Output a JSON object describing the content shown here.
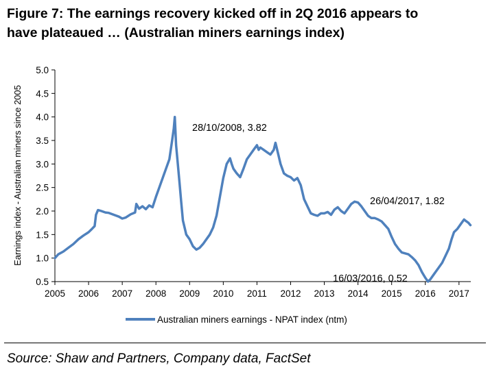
{
  "figure": {
    "title_line1": "Figure   7: The earnings recovery kicked off in 2Q 2016 appears to",
    "title_line2": "have plateaued … (Australian miners earnings index)",
    "source": "Source: Shaw and Partners, Company data, FactSet"
  },
  "chart_data": {
    "type": "line",
    "title": "",
    "xlabel": "",
    "ylabel": "Earnings index - Australian miners since 2005",
    "xlim": [
      2005.0,
      2017.35
    ],
    "ylim": [
      0.5,
      5.0
    ],
    "y_ticks": [
      "0.5",
      "1.0",
      "1.5",
      "2.0",
      "2.5",
      "3.0",
      "3.5",
      "4.0",
      "4.5",
      "5.0"
    ],
    "x_ticks": [
      "2005",
      "2006",
      "2007",
      "2008",
      "2009",
      "2010",
      "2011",
      "2012",
      "2013",
      "2014",
      "2015",
      "2016",
      "2017"
    ],
    "grid": false,
    "legend": "bottom",
    "color": "#4f81bd",
    "series": [
      {
        "name": "Australian miners earnings - NPAT index (ntm)",
        "points": [
          [
            2005.0,
            1.0
          ],
          [
            2005.1,
            1.08
          ],
          [
            2005.25,
            1.14
          ],
          [
            2005.4,
            1.22
          ],
          [
            2005.55,
            1.3
          ],
          [
            2005.7,
            1.4
          ],
          [
            2005.85,
            1.48
          ],
          [
            2006.0,
            1.55
          ],
          [
            2006.1,
            1.62
          ],
          [
            2006.18,
            1.68
          ],
          [
            2006.22,
            1.92
          ],
          [
            2006.28,
            2.02
          ],
          [
            2006.38,
            2.0
          ],
          [
            2006.5,
            1.97
          ],
          [
            2006.6,
            1.96
          ],
          [
            2006.75,
            1.92
          ],
          [
            2006.9,
            1.88
          ],
          [
            2007.0,
            1.84
          ],
          [
            2007.1,
            1.86
          ],
          [
            2007.25,
            1.93
          ],
          [
            2007.38,
            1.97
          ],
          [
            2007.42,
            2.15
          ],
          [
            2007.5,
            2.05
          ],
          [
            2007.6,
            2.1
          ],
          [
            2007.7,
            2.04
          ],
          [
            2007.8,
            2.12
          ],
          [
            2007.9,
            2.08
          ],
          [
            2008.0,
            2.3
          ],
          [
            2008.1,
            2.5
          ],
          [
            2008.2,
            2.7
          ],
          [
            2008.3,
            2.9
          ],
          [
            2008.4,
            3.1
          ],
          [
            2008.48,
            3.5
          ],
          [
            2008.53,
            3.75
          ],
          [
            2008.56,
            4.0
          ],
          [
            2008.6,
            3.4
          ],
          [
            2008.65,
            3.0
          ],
          [
            2008.7,
            2.6
          ],
          [
            2008.75,
            2.2
          ],
          [
            2008.8,
            1.8
          ],
          [
            2008.9,
            1.5
          ],
          [
            2009.0,
            1.4
          ],
          [
            2009.1,
            1.25
          ],
          [
            2009.2,
            1.18
          ],
          [
            2009.3,
            1.22
          ],
          [
            2009.4,
            1.3
          ],
          [
            2009.5,
            1.4
          ],
          [
            2009.6,
            1.5
          ],
          [
            2009.7,
            1.65
          ],
          [
            2009.8,
            1.9
          ],
          [
            2009.9,
            2.3
          ],
          [
            2010.0,
            2.7
          ],
          [
            2010.1,
            3.0
          ],
          [
            2010.2,
            3.12
          ],
          [
            2010.25,
            3.0
          ],
          [
            2010.3,
            2.9
          ],
          [
            2010.4,
            2.8
          ],
          [
            2010.5,
            2.72
          ],
          [
            2010.6,
            2.9
          ],
          [
            2010.7,
            3.1
          ],
          [
            2010.8,
            3.2
          ],
          [
            2010.9,
            3.3
          ],
          [
            2011.0,
            3.4
          ],
          [
            2011.05,
            3.3
          ],
          [
            2011.1,
            3.35
          ],
          [
            2011.2,
            3.3
          ],
          [
            2011.3,
            3.25
          ],
          [
            2011.4,
            3.2
          ],
          [
            2011.5,
            3.3
          ],
          [
            2011.55,
            3.45
          ],
          [
            2011.6,
            3.3
          ],
          [
            2011.7,
            3.0
          ],
          [
            2011.8,
            2.8
          ],
          [
            2011.9,
            2.75
          ],
          [
            2012.0,
            2.72
          ],
          [
            2012.1,
            2.65
          ],
          [
            2012.2,
            2.7
          ],
          [
            2012.3,
            2.55
          ],
          [
            2012.4,
            2.25
          ],
          [
            2012.5,
            2.1
          ],
          [
            2012.6,
            1.95
          ],
          [
            2012.7,
            1.92
          ],
          [
            2012.8,
            1.9
          ],
          [
            2012.9,
            1.95
          ],
          [
            2013.0,
            1.95
          ],
          [
            2013.1,
            1.98
          ],
          [
            2013.2,
            1.92
          ],
          [
            2013.3,
            2.03
          ],
          [
            2013.4,
            2.08
          ],
          [
            2013.5,
            2.0
          ],
          [
            2013.6,
            1.95
          ],
          [
            2013.7,
            2.05
          ],
          [
            2013.8,
            2.15
          ],
          [
            2013.9,
            2.2
          ],
          [
            2014.0,
            2.18
          ],
          [
            2014.1,
            2.1
          ],
          [
            2014.2,
            2.0
          ],
          [
            2014.3,
            1.9
          ],
          [
            2014.4,
            1.85
          ],
          [
            2014.5,
            1.85
          ],
          [
            2014.6,
            1.82
          ],
          [
            2014.7,
            1.78
          ],
          [
            2014.8,
            1.7
          ],
          [
            2014.9,
            1.62
          ],
          [
            2015.0,
            1.45
          ],
          [
            2015.1,
            1.3
          ],
          [
            2015.2,
            1.2
          ],
          [
            2015.3,
            1.12
          ],
          [
            2015.4,
            1.1
          ],
          [
            2015.5,
            1.08
          ],
          [
            2015.6,
            1.02
          ],
          [
            2015.7,
            0.95
          ],
          [
            2015.8,
            0.85
          ],
          [
            2015.9,
            0.7
          ],
          [
            2016.0,
            0.58
          ],
          [
            2016.08,
            0.5
          ],
          [
            2016.15,
            0.55
          ],
          [
            2016.25,
            0.65
          ],
          [
            2016.4,
            0.8
          ],
          [
            2016.5,
            0.9
          ],
          [
            2016.6,
            1.05
          ],
          [
            2016.7,
            1.2
          ],
          [
            2016.78,
            1.4
          ],
          [
            2016.85,
            1.55
          ],
          [
            2016.95,
            1.62
          ],
          [
            2017.05,
            1.72
          ],
          [
            2017.15,
            1.82
          ],
          [
            2017.22,
            1.78
          ],
          [
            2017.28,
            1.75
          ],
          [
            2017.34,
            1.7
          ]
        ]
      }
    ],
    "annotations": [
      {
        "text": "28/10/2008, 3.82"
      },
      {
        "text": "26/04/2017, 1.82"
      },
      {
        "text": "16/03/2016, 0.52"
      }
    ]
  }
}
